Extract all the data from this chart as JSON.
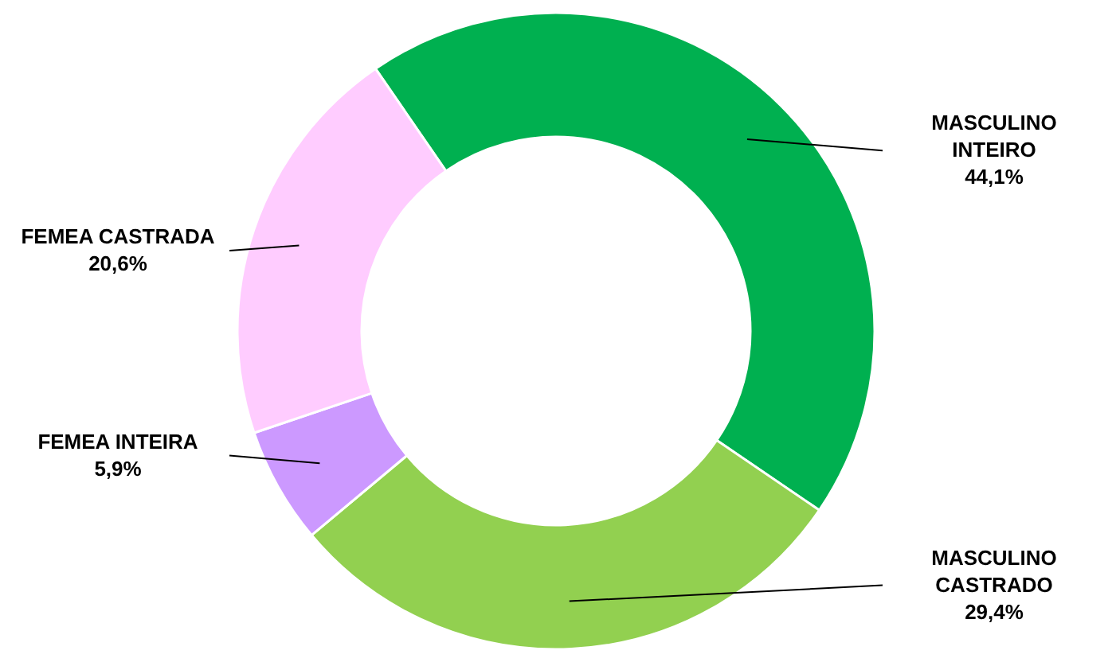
{
  "chart_data": {
    "type": "donut",
    "categories": [
      "MASCULINO INTEIRO",
      "MASCULINO CASTRADO",
      "FEMEA INTEIRA",
      "FEMEA CASTRADA"
    ],
    "values": [
      44.1,
      29.4,
      5.9,
      20.6
    ],
    "colors": [
      "#00b050",
      "#92d050",
      "#cc99ff",
      "#ffccff"
    ],
    "value_labels": [
      "44,1%",
      "29,4%",
      "5,9%",
      "20,6%"
    ]
  }
}
